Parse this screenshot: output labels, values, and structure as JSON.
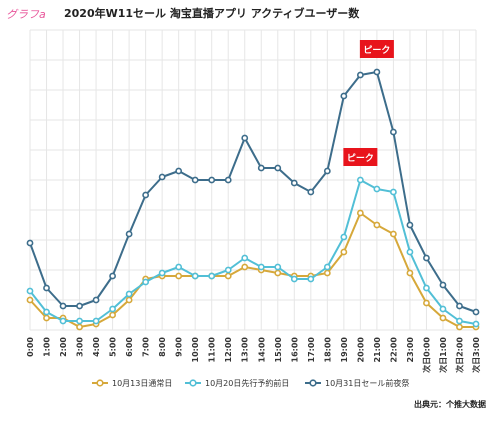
{
  "header": {
    "brand": "グラフa",
    "title": "2020年W11セール 淘宝直播アプリ アクティブユーザー数"
  },
  "source": "出典元：个推大数据",
  "chart_data": {
    "type": "line",
    "title": "2020年W11セール 淘宝直播アプリ アクティブユーザー数",
    "xlabel": "",
    "ylabel": "",
    "ylim": [
      0,
      100
    ],
    "grid": true,
    "legend_position": "bottom",
    "categories": [
      "0:00",
      "1:00",
      "2:00",
      "3:00",
      "4:00",
      "5:00",
      "6:00",
      "7:00",
      "8:00",
      "9:00",
      "10:00",
      "11:00",
      "12:00",
      "13:00",
      "14:00",
      "15:00",
      "16:00",
      "17:00",
      "18:00",
      "19:00",
      "20:00",
      "21:00",
      "22:00",
      "23:00",
      "次日0:00",
      "次日1:00",
      "次日2:00",
      "次日3:00"
    ],
    "series": [
      {
        "name": "10月13日通常日",
        "color": "#d6a83a",
        "values": [
          10,
          4,
          4,
          1,
          2,
          5,
          10,
          17,
          18,
          18,
          18,
          18,
          18,
          21,
          20,
          19,
          18,
          18,
          19,
          26,
          39,
          35,
          32,
          19,
          9,
          4,
          1,
          1
        ]
      },
      {
        "name": "10月20日先行予約前日",
        "color": "#52bfd6",
        "values": [
          13,
          6,
          3,
          3,
          3,
          7,
          12,
          16,
          19,
          21,
          18,
          18,
          20,
          24,
          21,
          21,
          17,
          17,
          21,
          31,
          50,
          47,
          46,
          26,
          14,
          7,
          3,
          2
        ]
      },
      {
        "name": "10月31日セール前夜祭",
        "color": "#3d6d8b",
        "values": [
          29,
          14,
          8,
          8,
          10,
          18,
          32,
          45,
          51,
          53,
          50,
          50,
          50,
          64,
          54,
          54,
          49,
          46,
          53,
          78,
          85,
          86,
          66,
          35,
          24,
          15,
          8,
          6
        ]
      }
    ],
    "annotations": [
      {
        "text": "ピーク",
        "series": "10月31日セール前夜祭",
        "x": "21:00"
      },
      {
        "text": "ピーク",
        "series": "10月20日先行予約前日",
        "x": "20:00"
      }
    ],
    "colors": {
      "annotation_bg": "#e8141c",
      "annotation_text": "#ffffff",
      "grid": "#e6e6e6"
    }
  }
}
